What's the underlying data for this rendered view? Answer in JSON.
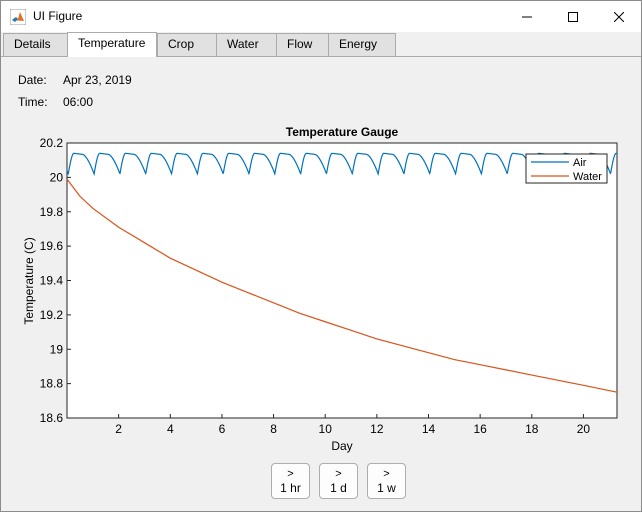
{
  "window": {
    "title": "UI Figure",
    "icons": {
      "app": "matlab-logo-icon",
      "minimize": "minimize-icon",
      "maximize": "maximize-icon",
      "close": "close-icon"
    }
  },
  "tabs": [
    {
      "label": "Details",
      "active": false
    },
    {
      "label": "Temperature",
      "active": true
    },
    {
      "label": "Crop",
      "active": false
    },
    {
      "label": "Water",
      "active": false
    },
    {
      "label": "Flow",
      "active": false
    },
    {
      "label": "Energy",
      "active": false
    }
  ],
  "info": {
    "date_label": "Date:",
    "date_value": "Apr 23, 2019",
    "time_label": "Time:",
    "time_value": "06:00"
  },
  "chart_data": {
    "type": "line",
    "title": "Temperature Gauge",
    "xlabel": "Day",
    "ylabel": "Temperature (C)",
    "xlim": [
      0,
      21.3
    ],
    "ylim": [
      18.6,
      20.2
    ],
    "xticks": [
      2,
      4,
      6,
      8,
      10,
      12,
      14,
      16,
      18,
      20
    ],
    "yticks": [
      18.6,
      18.8,
      19,
      19.2,
      19.4,
      19.6,
      19.8,
      20,
      20.2
    ],
    "legend_position": "top-right",
    "series": [
      {
        "name": "Air",
        "color": "#0072bd",
        "pattern": "daily cycle, ~20.02 to 20.14",
        "min": 20.02,
        "max": 20.14,
        "period_days": 1
      },
      {
        "name": "Water",
        "color": "#d95319",
        "x": [
          0,
          0.5,
          1,
          2,
          3,
          4,
          5,
          6,
          7,
          8,
          9,
          10,
          11,
          12,
          13,
          14,
          15,
          16,
          17,
          18,
          19,
          20,
          21.3
        ],
        "values": [
          19.99,
          19.89,
          19.82,
          19.71,
          19.62,
          19.53,
          19.46,
          19.39,
          19.33,
          19.27,
          19.21,
          19.16,
          19.11,
          19.06,
          19.02,
          18.98,
          18.94,
          18.91,
          18.88,
          18.85,
          18.82,
          18.79,
          18.75
        ]
      }
    ]
  },
  "buttons": [
    {
      "arrow": ">",
      "label": "1 hr"
    },
    {
      "arrow": ">",
      "label": "1 d"
    },
    {
      "arrow": ">",
      "label": "1 w"
    }
  ]
}
